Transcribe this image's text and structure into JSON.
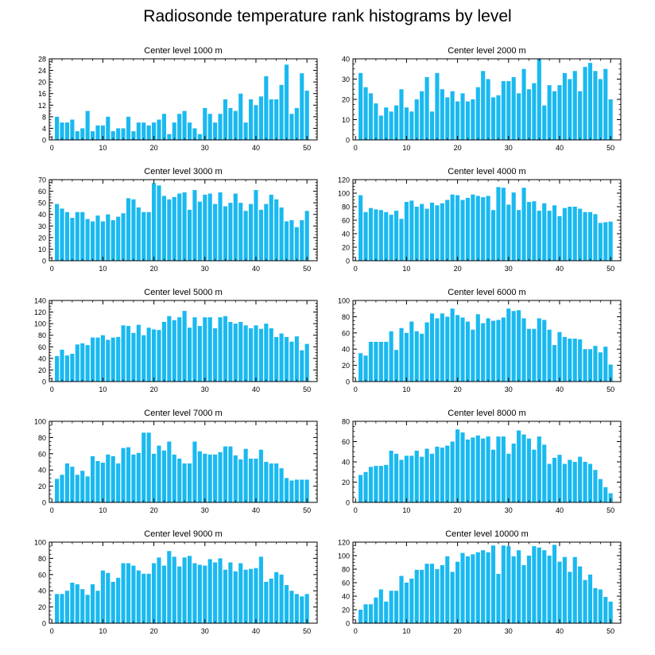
{
  "figure_title": "Radiosonde temperature rank histograms by level",
  "colors": {
    "bar": "#1ab9f0",
    "axis": "#000000",
    "background": "#ffffff"
  },
  "chart_data": [
    {
      "type": "bar",
      "title": "Center level 1000 m",
      "ylim": [
        0,
        28
      ],
      "yticks": [
        0,
        4,
        8,
        12,
        16,
        20,
        24,
        28
      ],
      "xlim": [
        -0.5,
        52
      ],
      "xticks": [
        0,
        10,
        20,
        30,
        40,
        50
      ],
      "values": [
        8,
        6,
        6,
        7,
        3,
        4,
        10,
        3,
        5,
        5,
        8,
        3,
        4,
        4,
        8,
        3,
        6,
        6,
        5,
        6,
        7,
        9,
        2,
        6,
        9,
        10,
        6,
        4,
        2,
        11,
        9,
        6,
        9,
        14,
        11,
        10,
        16,
        6,
        14,
        12,
        15,
        22,
        14,
        14,
        19,
        26,
        9,
        11,
        23,
        17
      ]
    },
    {
      "type": "bar",
      "title": "Center level 2000 m",
      "ylim": [
        0,
        40
      ],
      "yticks": [
        0,
        10,
        20,
        30,
        40
      ],
      "xlim": [
        -0.5,
        52
      ],
      "xticks": [
        0,
        10,
        20,
        30,
        40,
        50
      ],
      "values": [
        33,
        26,
        23,
        18,
        12,
        16,
        14,
        17,
        25,
        16,
        14,
        20,
        24,
        31,
        14,
        33,
        25,
        21,
        24,
        19,
        23,
        19,
        20,
        26,
        34,
        30,
        21,
        22,
        29,
        29,
        31,
        23,
        35,
        25,
        28,
        40,
        17,
        27,
        24,
        27,
        33,
        30,
        34,
        24,
        36,
        38,
        34,
        30,
        35,
        20
      ]
    },
    {
      "type": "bar",
      "title": "Center level 3000 m",
      "ylim": [
        0,
        70
      ],
      "yticks": [
        0,
        10,
        20,
        30,
        40,
        50,
        60,
        70
      ],
      "xlim": [
        -0.5,
        52
      ],
      "xticks": [
        0,
        10,
        20,
        30,
        40,
        50
      ],
      "values": [
        49,
        45,
        42,
        37,
        42,
        42,
        36,
        34,
        39,
        34,
        40,
        35,
        38,
        41,
        54,
        53,
        46,
        42,
        42,
        67,
        65,
        56,
        53,
        55,
        58,
        59,
        44,
        61,
        51,
        57,
        58,
        49,
        59,
        47,
        50,
        58,
        50,
        43,
        49,
        61,
        44,
        49,
        57,
        53,
        46,
        34,
        35,
        29,
        35,
        43
      ]
    },
    {
      "type": "bar",
      "title": "Center level 4000 m",
      "ylim": [
        0,
        120
      ],
      "yticks": [
        0,
        20,
        40,
        60,
        80,
        100,
        120
      ],
      "xlim": [
        -0.5,
        52
      ],
      "xticks": [
        0,
        10,
        20,
        30,
        40,
        50
      ],
      "values": [
        97,
        72,
        78,
        76,
        75,
        72,
        68,
        74,
        62,
        87,
        89,
        80,
        84,
        77,
        86,
        82,
        85,
        90,
        98,
        97,
        90,
        93,
        98,
        96,
        94,
        96,
        75,
        109,
        108,
        83,
        101,
        75,
        108,
        87,
        88,
        74,
        85,
        74,
        82,
        66,
        78,
        80,
        80,
        77,
        72,
        72,
        69,
        56,
        57,
        58
      ]
    },
    {
      "type": "bar",
      "title": "Center level 5000 m",
      "ylim": [
        0,
        140
      ],
      "yticks": [
        0,
        20,
        40,
        60,
        80,
        100,
        120,
        140
      ],
      "xlim": [
        -0.5,
        52
      ],
      "xticks": [
        0,
        10,
        20,
        30,
        40,
        50
      ],
      "values": [
        44,
        55,
        45,
        48,
        64,
        66,
        63,
        76,
        76,
        80,
        72,
        76,
        77,
        97,
        96,
        84,
        98,
        80,
        93,
        90,
        89,
        103,
        113,
        106,
        111,
        122,
        93,
        111,
        96,
        111,
        111,
        92,
        111,
        113,
        103,
        100,
        103,
        97,
        92,
        97,
        91,
        100,
        92,
        77,
        83,
        77,
        69,
        78,
        54,
        65
      ]
    },
    {
      "type": "bar",
      "title": "Center level 6000 m",
      "ylim": [
        0,
        100
      ],
      "yticks": [
        0,
        20,
        40,
        60,
        80,
        100
      ],
      "xlim": [
        -0.5,
        52
      ],
      "xticks": [
        0,
        10,
        20,
        30,
        40,
        50
      ],
      "values": [
        35,
        32,
        49,
        49,
        49,
        49,
        62,
        39,
        66,
        60,
        74,
        62,
        59,
        73,
        84,
        78,
        84,
        80,
        90,
        82,
        79,
        74,
        64,
        83,
        72,
        78,
        75,
        76,
        79,
        90,
        87,
        88,
        78,
        65,
        65,
        78,
        76,
        64,
        45,
        61,
        55,
        53,
        53,
        52,
        40,
        40,
        44,
        36,
        43,
        21
      ]
    },
    {
      "type": "bar",
      "title": "Center level 7000 m",
      "ylim": [
        0,
        100
      ],
      "yticks": [
        0,
        20,
        40,
        60,
        80,
        100
      ],
      "xlim": [
        -0.5,
        52
      ],
      "xticks": [
        0,
        10,
        20,
        30,
        40,
        50
      ],
      "values": [
        29,
        34,
        48,
        44,
        34,
        39,
        32,
        57,
        51,
        49,
        59,
        57,
        48,
        67,
        68,
        59,
        61,
        86,
        86,
        60,
        70,
        64,
        75,
        59,
        54,
        48,
        48,
        75,
        63,
        60,
        59,
        59,
        62,
        69,
        69,
        58,
        53,
        66,
        54,
        54,
        65,
        50,
        48,
        48,
        42,
        30,
        27,
        28,
        28,
        28
      ]
    },
    {
      "type": "bar",
      "title": "Center level 8000 m",
      "ylim": [
        0,
        80
      ],
      "yticks": [
        0,
        20,
        40,
        60,
        80
      ],
      "xlim": [
        -0.5,
        52
      ],
      "xticks": [
        0,
        10,
        20,
        30,
        40,
        50
      ],
      "values": [
        27,
        30,
        35,
        36,
        36,
        37,
        51,
        48,
        42,
        46,
        46,
        51,
        45,
        53,
        48,
        55,
        54,
        56,
        60,
        72,
        69,
        62,
        64,
        66,
        63,
        65,
        52,
        65,
        65,
        48,
        58,
        71,
        67,
        63,
        52,
        65,
        57,
        38,
        44,
        47,
        38,
        42,
        40,
        45,
        40,
        38,
        32,
        23,
        15,
        9
      ]
    },
    {
      "type": "bar",
      "title": "Center level 9000 m",
      "ylim": [
        0,
        100
      ],
      "yticks": [
        0,
        20,
        40,
        60,
        80,
        100
      ],
      "xlim": [
        -0.5,
        52
      ],
      "xticks": [
        0,
        10,
        20,
        30,
        40,
        50
      ],
      "values": [
        36,
        36,
        40,
        50,
        48,
        42,
        35,
        48,
        40,
        65,
        62,
        51,
        56,
        74,
        74,
        71,
        65,
        61,
        61,
        74,
        81,
        71,
        89,
        82,
        70,
        81,
        83,
        74,
        72,
        71,
        79,
        75,
        80,
        66,
        75,
        64,
        74,
        66,
        67,
        68,
        82,
        51,
        55,
        63,
        60,
        47,
        40,
        36,
        33,
        36
      ]
    },
    {
      "type": "bar",
      "title": "Center level 10000 m",
      "ylim": [
        0,
        120
      ],
      "yticks": [
        0,
        20,
        40,
        60,
        80,
        100,
        120
      ],
      "xlim": [
        -0.5,
        52
      ],
      "xticks": [
        0,
        10,
        20,
        30,
        40,
        50
      ],
      "values": [
        20,
        28,
        28,
        38,
        50,
        32,
        48,
        48,
        70,
        60,
        66,
        79,
        79,
        88,
        88,
        80,
        86,
        99,
        76,
        91,
        104,
        99,
        102,
        105,
        108,
        105,
        115,
        73,
        115,
        114,
        99,
        108,
        86,
        100,
        114,
        112,
        108,
        100,
        116,
        91,
        98,
        76,
        98,
        84,
        64,
        72,
        52,
        50,
        39,
        32
      ]
    }
  ]
}
